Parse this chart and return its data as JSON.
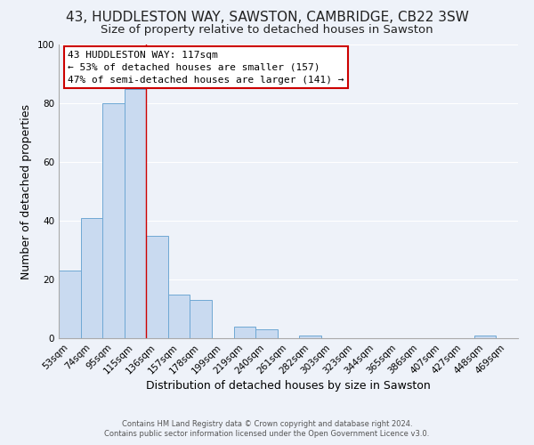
{
  "title": "43, HUDDLESTON WAY, SAWSTON, CAMBRIDGE, CB22 3SW",
  "subtitle": "Size of property relative to detached houses in Sawston",
  "xlabel": "Distribution of detached houses by size in Sawston",
  "ylabel": "Number of detached properties",
  "bar_labels": [
    "53sqm",
    "74sqm",
    "95sqm",
    "115sqm",
    "136sqm",
    "157sqm",
    "178sqm",
    "199sqm",
    "219sqm",
    "240sqm",
    "261sqm",
    "282sqm",
    "303sqm",
    "323sqm",
    "344sqm",
    "365sqm",
    "386sqm",
    "407sqm",
    "427sqm",
    "448sqm",
    "469sqm"
  ],
  "bar_heights": [
    23,
    41,
    80,
    85,
    35,
    15,
    13,
    0,
    4,
    3,
    0,
    1,
    0,
    0,
    0,
    0,
    0,
    0,
    0,
    1,
    0
  ],
  "bar_color": "#c9daf0",
  "bar_edge_color": "#6fa8d4",
  "ylim": [
    0,
    100
  ],
  "yticks": [
    0,
    20,
    40,
    60,
    80,
    100
  ],
  "annotation_title": "43 HUDDLESTON WAY: 117sqm",
  "annotation_line1": "← 53% of detached houses are smaller (157)",
  "annotation_line2": "47% of semi-detached houses are larger (141) →",
  "annotation_box_color": "#ffffff",
  "annotation_box_edge": "#cc0000",
  "property_line_x": 3.5,
  "footer1": "Contains HM Land Registry data © Crown copyright and database right 2024.",
  "footer2": "Contains public sector information licensed under the Open Government Licence v3.0.",
  "background_color": "#eef2f9",
  "grid_color": "#ffffff",
  "title_fontsize": 11,
  "subtitle_fontsize": 9.5,
  "axis_label_fontsize": 9,
  "tick_fontsize": 7.5,
  "annotation_fontsize": 8,
  "footer_fontsize": 6
}
